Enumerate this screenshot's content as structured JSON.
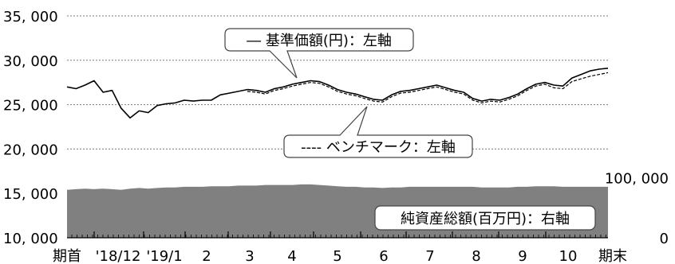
{
  "chart_data": {
    "type": "line",
    "left_axis": {
      "ticks": [
        "35, 000",
        "30, 000",
        "25, 000",
        "20, 000",
        "15, 000",
        "10, 000"
      ],
      "values": [
        35000,
        30000,
        25000,
        20000,
        15000,
        10000
      ],
      "ylim": [
        10000,
        35000
      ]
    },
    "right_axis": {
      "ticks": [
        "100, 000",
        "0"
      ],
      "values": [
        100000,
        0
      ],
      "ylim": [
        0,
        370000
      ]
    },
    "x_ticks": [
      "期首",
      "'18/12",
      "'19/1",
      "2",
      "3",
      "4",
      "5",
      "6",
      "7",
      "8",
      "9",
      "10",
      "期末"
    ],
    "grid": "horizontal-dashed",
    "series": [
      {
        "name": "基準価額(円)：左軸",
        "axis": "left",
        "style": "solid",
        "color": "#000000",
        "values": [
          27000,
          26800,
          27200,
          27700,
          26400,
          26600,
          24600,
          23500,
          24300,
          24100,
          24900,
          25100,
          25200,
          25500,
          25400,
          25500,
          25500,
          26100,
          26300,
          26500,
          26700,
          26600,
          26400,
          26800,
          27000,
          27300,
          27500,
          27700,
          27600,
          27200,
          26700,
          26400,
          26200,
          25900,
          25600,
          25500,
          26100,
          26500,
          26600,
          26800,
          27000,
          27200,
          26900,
          26600,
          26400,
          25700,
          25400,
          25600,
          25500,
          25800,
          26200,
          26800,
          27300,
          27500,
          27200,
          27100,
          28000,
          28400,
          28800,
          29000,
          29100
        ]
      },
      {
        "name": "ベンチマーク：左軸",
        "axis": "left",
        "style": "dashed",
        "color": "#000000",
        "values": [
          null,
          null,
          null,
          null,
          null,
          null,
          null,
          null,
          null,
          null,
          null,
          null,
          null,
          null,
          null,
          null,
          null,
          null,
          null,
          null,
          26500,
          26400,
          26200,
          26600,
          26800,
          27100,
          27300,
          27500,
          27400,
          27000,
          26500,
          26200,
          26000,
          25700,
          25400,
          25300,
          25900,
          26300,
          26400,
          26600,
          26800,
          27000,
          26700,
          26400,
          26200,
          25500,
          25200,
          25400,
          25300,
          25600,
          26000,
          26600,
          27100,
          27300,
          26900,
          26800,
          27600,
          27900,
          28200,
          28400,
          28600
        ]
      },
      {
        "name": "純資産総額(百万円)：右軸",
        "axis": "right",
        "type": "area",
        "color": "#808080",
        "values": [
          80000,
          81000,
          82000,
          81000,
          82000,
          81000,
          80000,
          82000,
          83000,
          82000,
          83000,
          84000,
          84000,
          85000,
          85000,
          85000,
          86000,
          86000,
          86000,
          87000,
          87000,
          87000,
          88000,
          88000,
          88000,
          88000,
          89000,
          89000,
          88000,
          87000,
          86000,
          85000,
          85000,
          84000,
          84000,
          83000,
          84000,
          84000,
          85000,
          85000,
          85000,
          85000,
          85000,
          85000,
          85000,
          85000,
          84000,
          84000,
          84000,
          84000,
          85000,
          85000,
          86000,
          86000,
          86000,
          85000,
          85000,
          85000,
          85000,
          85000,
          85000
        ]
      }
    ],
    "labels": {
      "nav": "― 基準価額(円)：左軸",
      "benchmark": "---- ベンチマーク：左軸",
      "assets": "純資産総額(百万円)：右軸"
    }
  }
}
